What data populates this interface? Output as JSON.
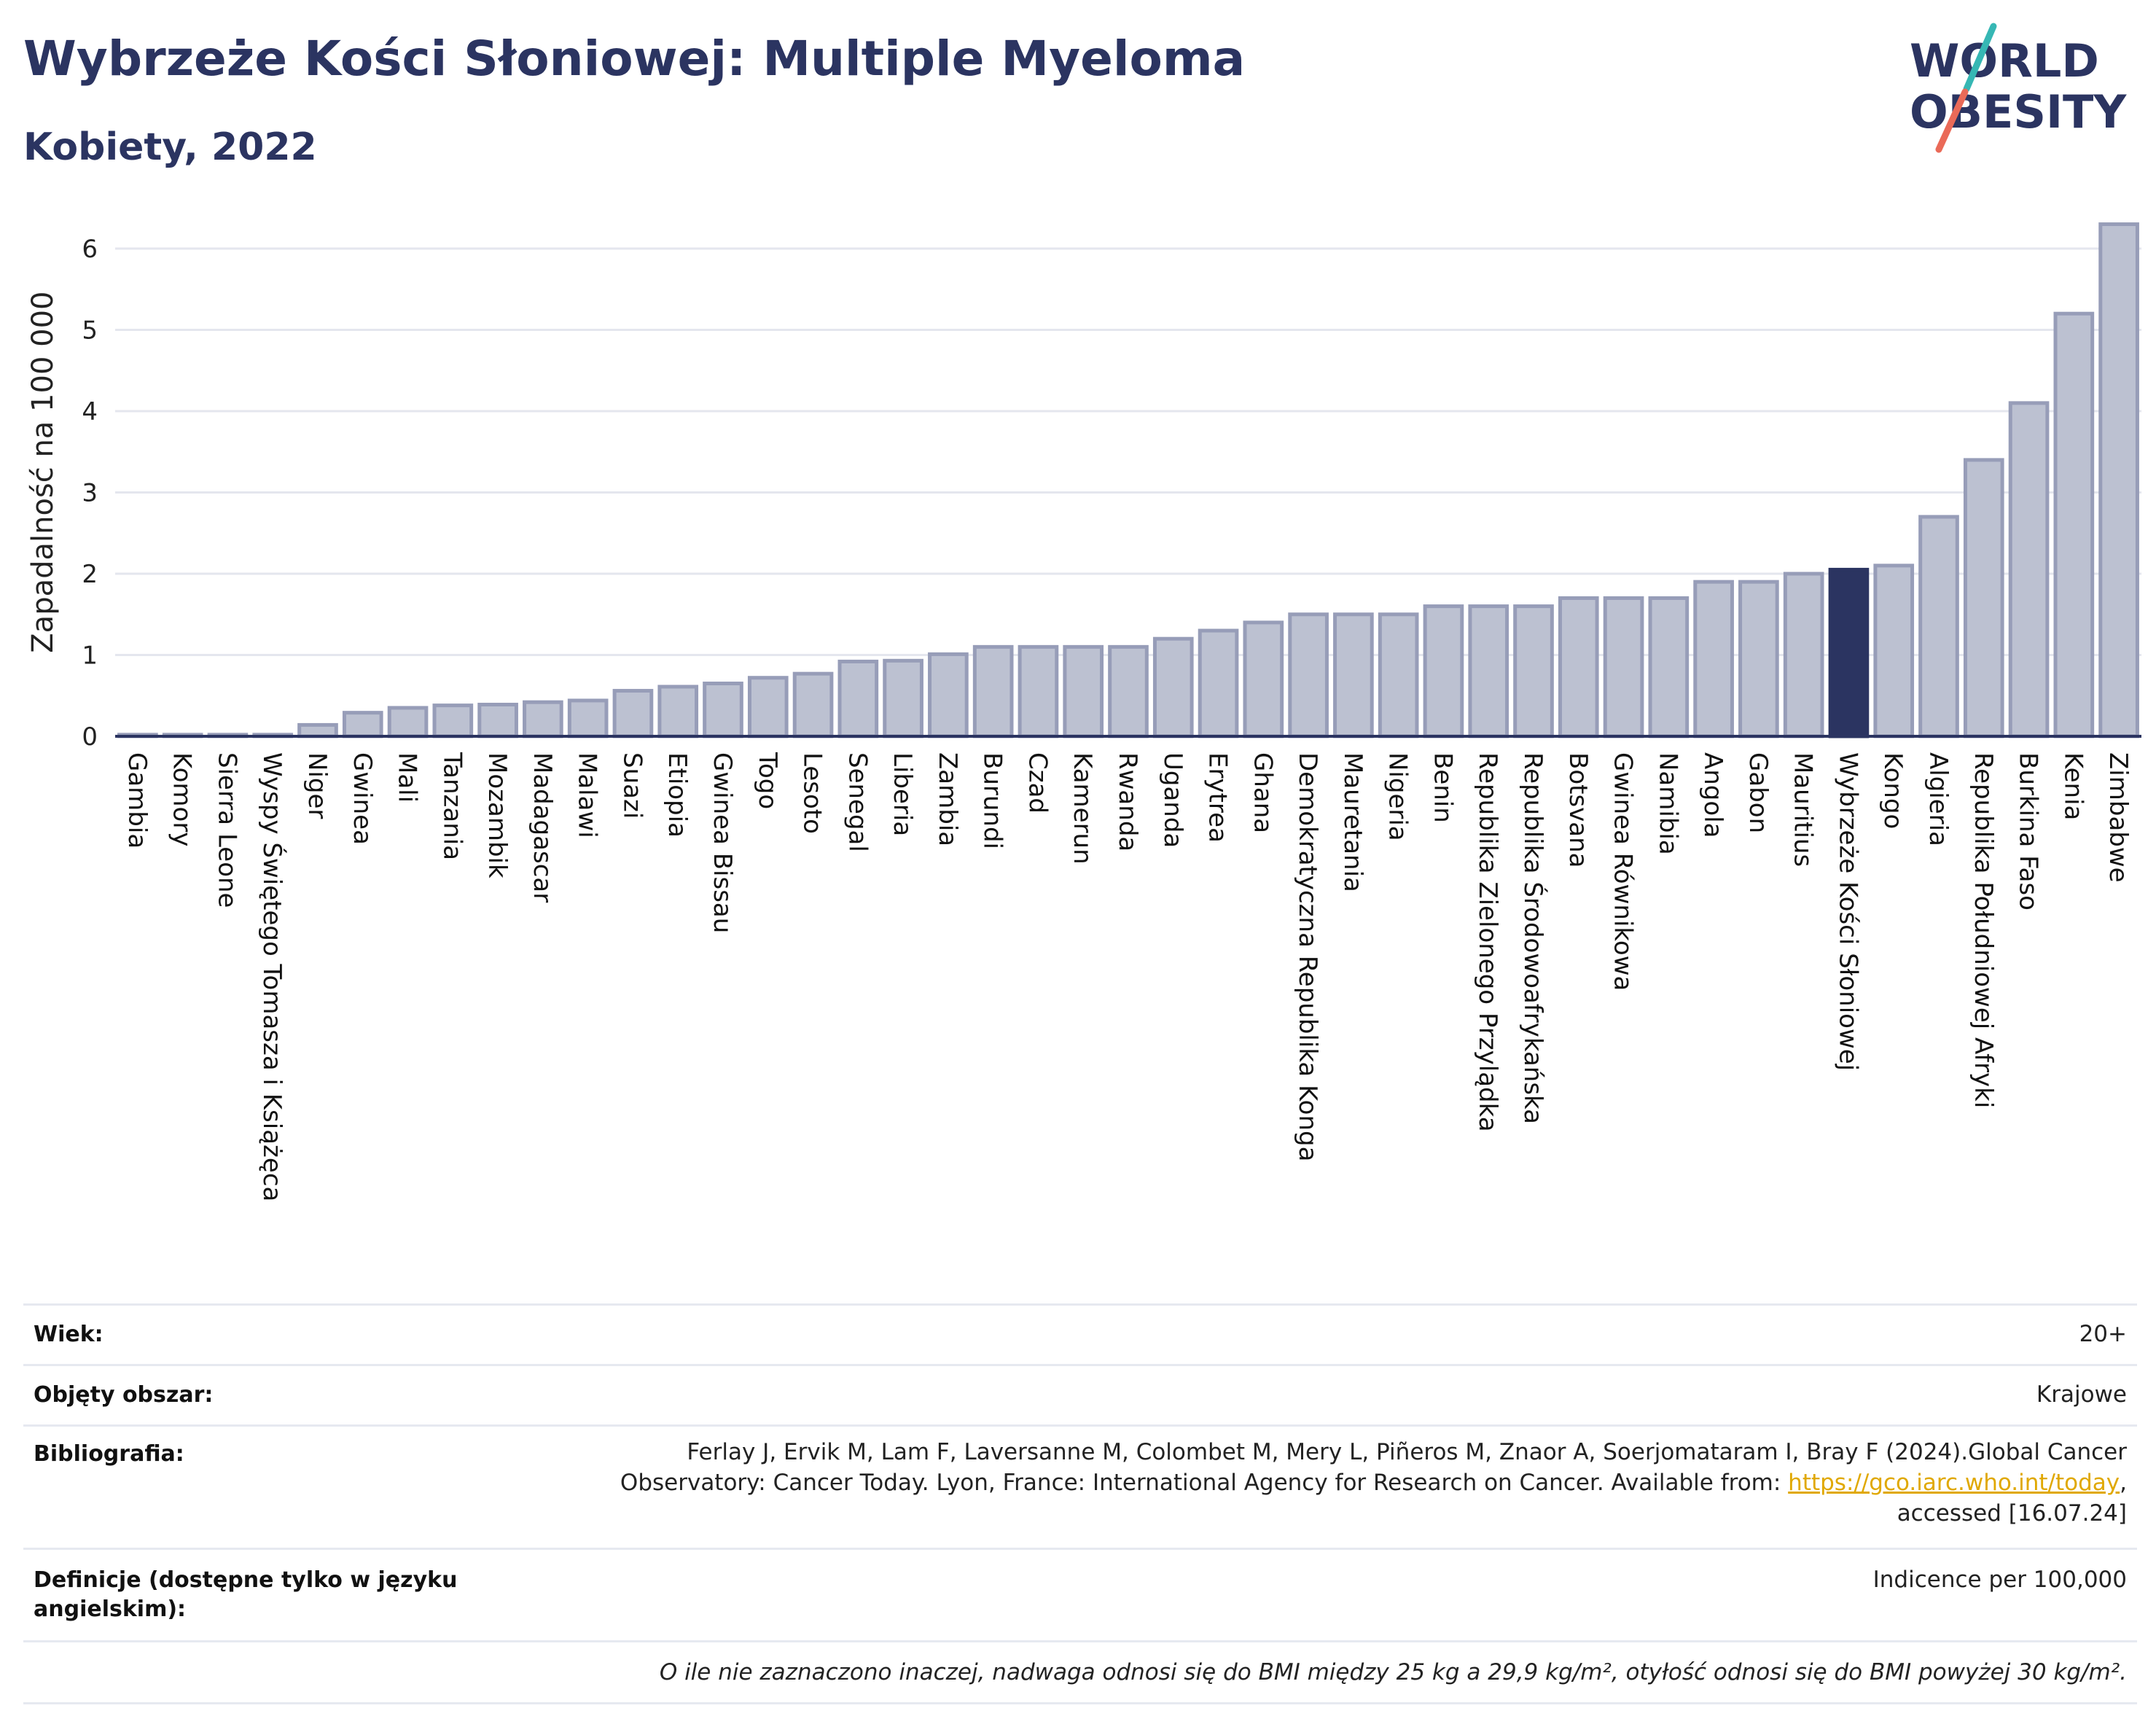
{
  "header": {
    "title": "Wybrzeże Kości Słoniowej: Multiple Myeloma",
    "subtitle": "Kobiety, 2022"
  },
  "logo": {
    "line1": "WORLD",
    "line2": "OBESITY",
    "name": "world-obesity-logo"
  },
  "chart_data": {
    "type": "bar",
    "title": "Wybrzeże Kości Słoniowej: Multiple Myeloma",
    "subtitle": "Kobiety, 2022",
    "ylabel": "Zapadalność na 100 000",
    "xlabel": "",
    "ylim": [
      0,
      6.5
    ],
    "yticks": [
      0,
      1,
      2,
      3,
      4,
      5,
      6
    ],
    "grid": true,
    "highlight": "Wybrzeże Kości Słoniowej",
    "colors": {
      "bar": "#bcc1d1",
      "bar_edge": "#979db8",
      "highlight": "#2b3461",
      "axis": "#2b3461",
      "grid": "#e4e6ee"
    },
    "categories": [
      "Gambia",
      "Komory",
      "Sierra Leone",
      "Wyspy Świętego Tomasza i Książęca",
      "Niger",
      "Gwinea",
      "Mali",
      "Tanzania",
      "Mozambik",
      "Madagascar",
      "Malawi",
      "Suazi",
      "Etiopia",
      "Gwinea Bissau",
      "Togo",
      "Lesoto",
      "Senegal",
      "Liberia",
      "Zambia",
      "Burundi",
      "Czad",
      "Kamerun",
      "Rwanda",
      "Uganda",
      "Erytrea",
      "Ghana",
      "Demokratyczna Republika Konga",
      "Mauretania",
      "Nigeria",
      "Benin",
      "Republika Zielonego Przylądka",
      "Republika Środowoafrykańska",
      "Botsvana",
      "Gwinea Równikowa",
      "Namibia",
      "Angola",
      "Gabon",
      "Mauritius",
      "Wybrzeże Kości Słoniowej",
      "Kongo",
      "Algieria",
      "Republika Południowej Afryki",
      "Burkina Faso",
      "Kenia",
      "Zimbabwe"
    ],
    "values": [
      0.02,
      0.02,
      0.02,
      0.02,
      0.14,
      0.29,
      0.35,
      0.38,
      0.39,
      0.42,
      0.44,
      0.56,
      0.61,
      0.65,
      0.72,
      0.77,
      0.92,
      0.93,
      1.01,
      1.1,
      1.1,
      1.1,
      1.1,
      1.2,
      1.3,
      1.4,
      1.5,
      1.5,
      1.5,
      1.6,
      1.6,
      1.6,
      1.7,
      1.7,
      1.7,
      1.9,
      1.9,
      2.0,
      2.05,
      2.1,
      2.7,
      3.4,
      4.1,
      5.2,
      6.3
    ]
  },
  "info": {
    "age_label": "Wiek:",
    "age_value": "20+",
    "area_label": "Objęty obszar:",
    "area_value": "Krajowe",
    "biblio_label": "Bibliografia:",
    "biblio_line1": "Ferlay J, Ervik M, Lam F, Laversanne M, Colombet M, Mery L, Piñeros M, Znaor A, Soerjomataram I, Bray F (2024).Global Cancer",
    "biblio_line2": "Observatory: Cancer Today. Lyon, France: International Agency for Research on Cancer. Available from: ",
    "biblio_link": "https://gco.iarc.who.int/today",
    "biblio_line2_end": ",",
    "biblio_line3": "accessed [16.07.24]",
    "def_label_1": "Definicje (dostępne tylko w języku",
    "def_label_2": "angielskim):",
    "def_value": "Indicence per 100,000",
    "note": "O ile nie zaznaczono inaczej, nadwaga odnosi się do BMI między 25 kg a 29,9 kg/m², otyłość odnosi się do BMI powyżej 30 kg/m²."
  }
}
